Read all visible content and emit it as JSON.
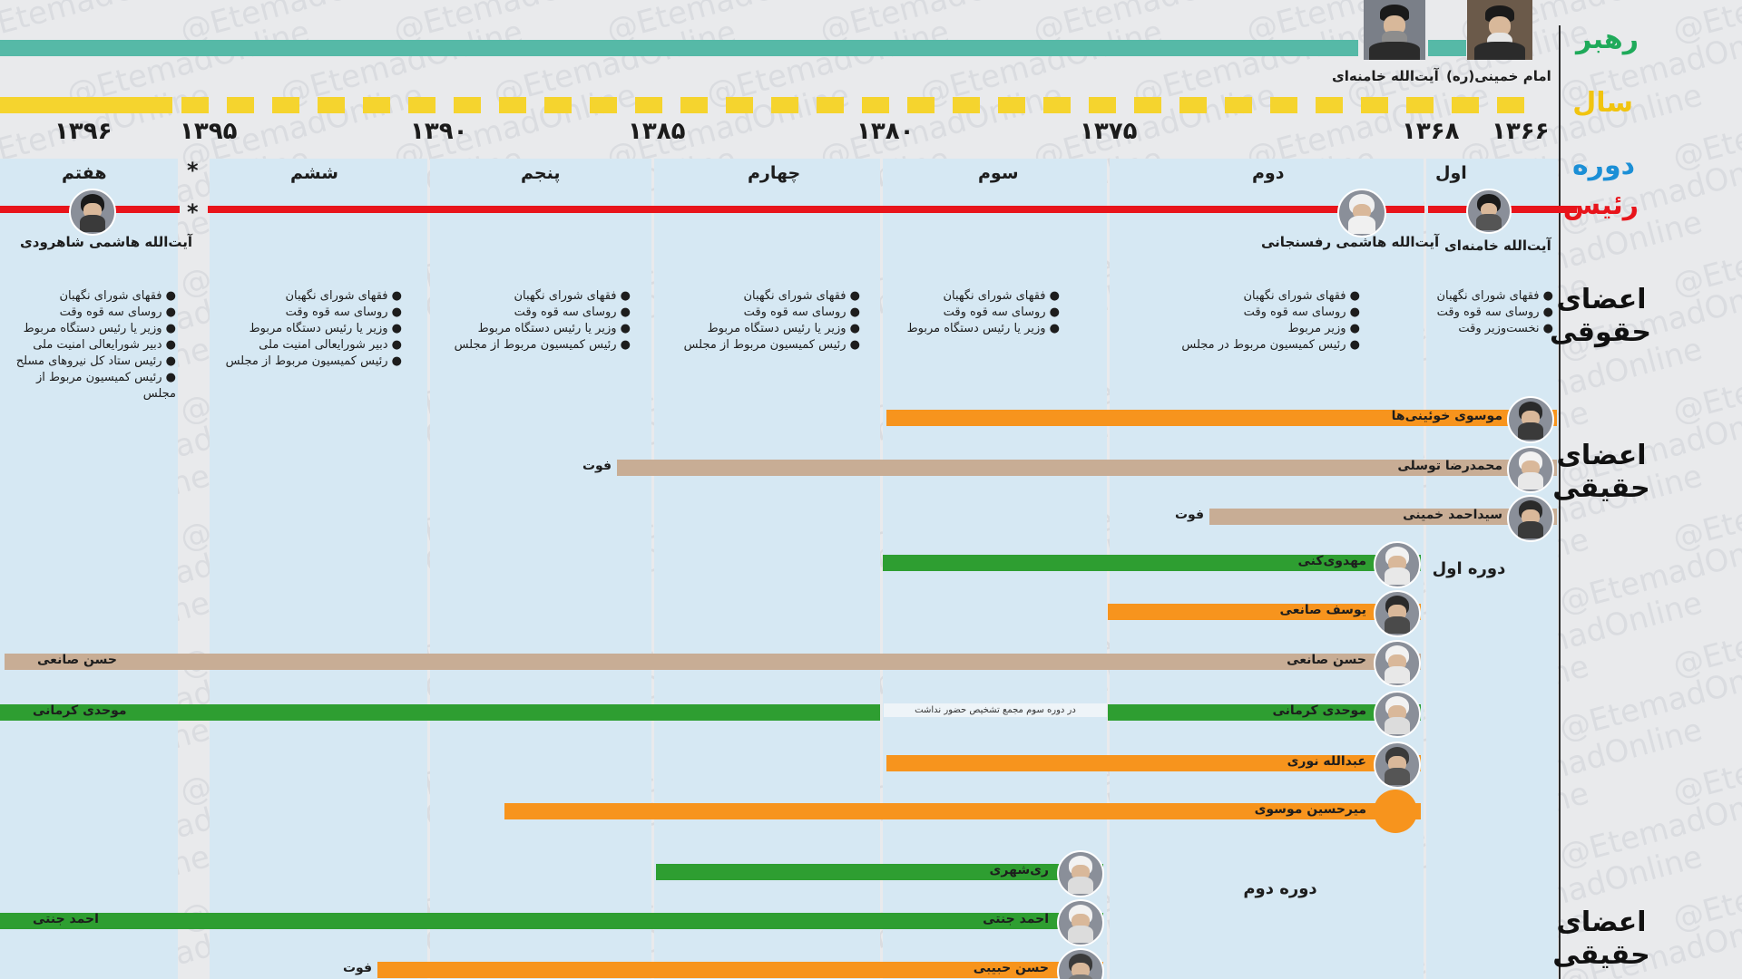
{
  "watermark": "@EtemadOnline",
  "colors": {
    "leader_bar": "#56b9a7",
    "year_dash": "#f5d42e",
    "president_line": "#e8141b",
    "period_band": "#d6e8f3",
    "bar_green": "#2e9e31",
    "bar_orange": "#f7941d",
    "bar_tan": "#c8ad95",
    "label_green": "#1faa5a",
    "label_yellow": "#f1c40f",
    "label_blue": "#1b8fd6",
    "label_red": "#e8141b",
    "label_black": "#111111"
  },
  "row_labels": {
    "leader": "رهبر",
    "year": "سال",
    "period": "دوره",
    "president": "رئیس",
    "legal_members": "اعضای حقوقی",
    "real_members": "اعضای حقیقی",
    "real_members_2": "اعضای حقیقی"
  },
  "leaders": [
    {
      "name": "امام خمینی(ره)",
      "icon": "portrait-icon"
    },
    {
      "name": "آیت‌الله خامنه‌ای",
      "icon": "portrait-icon"
    }
  ],
  "years": [
    "۱۳۹۶",
    "۱۳۹۵",
    "۱۳۹۰",
    "۱۳۸۵",
    "۱۳۸۰",
    "۱۳۷۵",
    "۱۳۶۸",
    "۱۳۶۶"
  ],
  "periods": [
    "هفتم",
    "*",
    "ششم",
    "پنجم",
    "چهارم",
    "سوم",
    "دوم",
    "اول"
  ],
  "president_star": "*",
  "presidents": [
    {
      "name": "آیت‌الله هاشمی شاهرودی"
    },
    {
      "name": "آیت‌الله هاشمی رفسنجانی"
    },
    {
      "name": "آیت‌الله خامنه‌ای"
    }
  ],
  "legal_members_lists": [
    {
      "period": "اول",
      "items": [
        "فقهای شورای نگهبان",
        "روسای سه قوه وقت",
        "نخست‌وزیر وقت"
      ]
    },
    {
      "period": "دوم",
      "items": [
        "فقهای شورای نگهبان",
        "روسای سه قوه وقت",
        "وزیر مربوط",
        "رئیس کمیسیون مربوط در مجلس"
      ]
    },
    {
      "period": "سوم",
      "items": [
        "فقهای شورای نگهبان",
        "روسای سه قوه وقت",
        "وزیر یا رئیس دستگاه مربوط"
      ]
    },
    {
      "period": "چهارم",
      "items": [
        "فقهای شورای نگهبان",
        "روسای سه قوه وقت",
        "وزیر یا رئیس دستگاه مربوط",
        "رئیس کمیسیون مربوط از مجلس"
      ]
    },
    {
      "period": "پنجم",
      "items": [
        "فقهای شورای نگهبان",
        "روسای سه قوه وقت",
        "وزیر یا رئیس دستگاه مربوط",
        "رئیس کمیسیون مربوط از مجلس"
      ]
    },
    {
      "period": "ششم",
      "items": [
        "فقهای شورای نگهبان",
        "روسای سه قوه وقت",
        "وزیر یا رئیس دستگاه مربوط",
        "دبیر شورایعالی امنیت ملی",
        "رئیس کمیسیون مربوط از مجلس"
      ]
    },
    {
      "period": "هفتم",
      "items": [
        "فقهای شورای نگهبان",
        "روسای سه قوه وقت",
        "وزیر یا رئیس دستگاه مربوط",
        "دبیر شورایعالی امنیت ملی",
        "رئیس ستاد کل نیروهای مسلح",
        "رئیس کمیسیون مربوط از مجلس"
      ]
    }
  ],
  "real_members": [
    {
      "name": "موسوی خوئینی‌ها",
      "color": "orange",
      "end_label": "",
      "second_name": "",
      "has_photo": true
    },
    {
      "name": "محمدرضا توسلی",
      "color": "tan",
      "end_label": "فوت",
      "second_name": "",
      "has_photo": true
    },
    {
      "name": "سیداحمد خمینی",
      "color": "tan",
      "end_label": "فوت",
      "second_name": "",
      "has_photo": true
    },
    {
      "name": "مهدوی‌کنی",
      "color": "green",
      "end_label": "",
      "second_name": "",
      "has_photo": true
    },
    {
      "name": "یوسف صانعی",
      "color": "orange",
      "end_label": "",
      "second_name": "",
      "has_photo": true
    },
    {
      "name": "حسن صانعی",
      "color": "tan",
      "end_label": "",
      "second_name": "حسن صانعی",
      "has_photo": true
    },
    {
      "name": "موحدی کرمانی",
      "color": "green",
      "end_label": "",
      "second_name": "موحدی کرمانی",
      "has_photo": true
    },
    {
      "name": "عبدالله نوری",
      "color": "orange",
      "end_label": "",
      "second_name": "",
      "has_photo": true
    },
    {
      "name": "میرحسین موسوی",
      "color": "orange",
      "end_label": "",
      "second_name": "",
      "has_photo": false
    },
    {
      "name": "ری‌شهری",
      "color": "green",
      "end_label": "",
      "second_name": "",
      "has_photo": true
    },
    {
      "name": "احمد جنتی",
      "color": "green",
      "end_label": "",
      "second_name": "احمد جنتی",
      "has_photo": true
    },
    {
      "name": "حسن حبیبی",
      "color": "orange",
      "end_label": "فوت",
      "second_name": "",
      "has_photo": true
    }
  ],
  "gap_note": "در دوره سوم مجمع تشخیص حضور نداشت",
  "section_notes": {
    "first_period": "دوره اول",
    "second_period": "دوره دوم"
  }
}
